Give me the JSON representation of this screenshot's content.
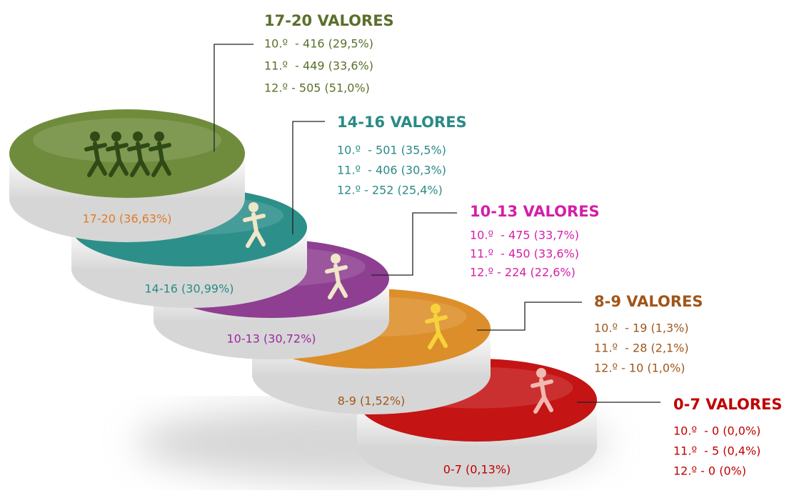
{
  "tiers": [
    {
      "title": "17-20 VALORES",
      "disc_label": "17-20 (36,63%)",
      "color": "#5b6f2b",
      "label_color": "#e07b28",
      "disc_color": "#6f8c3c",
      "lines": [
        "10.º  - 416 (29,5%)",
        "11.º  - 449 (33,6%)",
        "12.º - 505 (51,0%)"
      ]
    },
    {
      "title": "14-16 VALORES",
      "disc_label": "14-16 (30,99%)",
      "color": "#2a8a85",
      "label_color": "#2a8a85",
      "disc_color": "#2d8f8a",
      "lines": [
        "10.º  - 501 (35,5%)",
        "11.º  - 406 (30,3%)",
        "12.º - 252 (25,4%)"
      ]
    },
    {
      "title": "10-13 VALORES",
      "disc_label": "10-13 (30,72%)",
      "color": "#d41ea8",
      "label_color": "#9a2aa0",
      "disc_color": "#8e3f91",
      "lines": [
        "10.º  - 475 (33,7%)",
        "11.º  - 450 (33,6%)",
        "12.º - 224 (22,6%)"
      ]
    },
    {
      "title": "8-9 VALORES",
      "disc_label": "8-9 (1,52%)",
      "color": "#a0561a",
      "label_color": "#a0561a",
      "disc_color": "#dc8e2a",
      "lines": [
        "10.º  - 19 (1,3%)",
        "11.º  - 28 (2,1%)",
        "12.º - 10 (1,0%)"
      ]
    },
    {
      "title": "0-7 VALORES",
      "disc_label": "0-7 (0,13%)",
      "color": "#c00000",
      "label_color": "#c00000",
      "disc_color": "#c41414",
      "lines": [
        "10.º  - 0 (0,0%)",
        "11.º  - 5 (0,4%)",
        "12.º - 0 (0%)"
      ]
    }
  ]
}
